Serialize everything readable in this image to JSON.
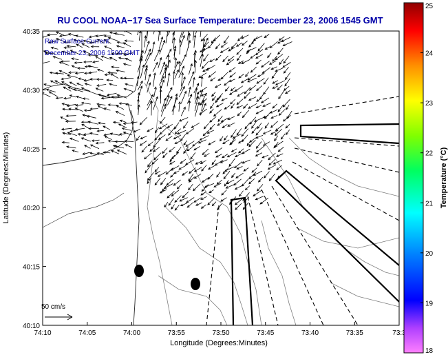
{
  "chart_data": {
    "type": "scatter",
    "title": "RU COOL  NOAA−17  Sea Surface Temperature:  December 23, 2006 1545 GMT",
    "xlabel": "Longitude (Degrees:Minutes)",
    "ylabel": "Latitude (Degrees:Minutes)",
    "x_ticks": [
      "74:10",
      "74:05",
      "74:00",
      "73:55",
      "73:50",
      "73:45",
      "73:40",
      "73:35",
      "73:3"
    ],
    "y_ticks": [
      "40:35",
      "40:30",
      "40:25",
      "40:20",
      "40:15",
      "40:10"
    ],
    "xlim_minutes_west": [
      10,
      30
    ],
    "ylim_minutes_north": [
      10,
      35
    ],
    "annotation_line1": "Raw Surface Current",
    "annotation_line2": "December 23, 2006 1500 GMT",
    "scale_label": "50 cm/s",
    "colorbar": {
      "label": "Temperature (°C)",
      "ticks": [
        "25",
        "24",
        "23",
        "22",
        "21",
        "20",
        "19",
        "18"
      ],
      "range": [
        18,
        25
      ]
    },
    "grid": false
  },
  "colors": {
    "title": "#0000a8",
    "vectors": "#000000",
    "contours": "#7f7f7f"
  }
}
